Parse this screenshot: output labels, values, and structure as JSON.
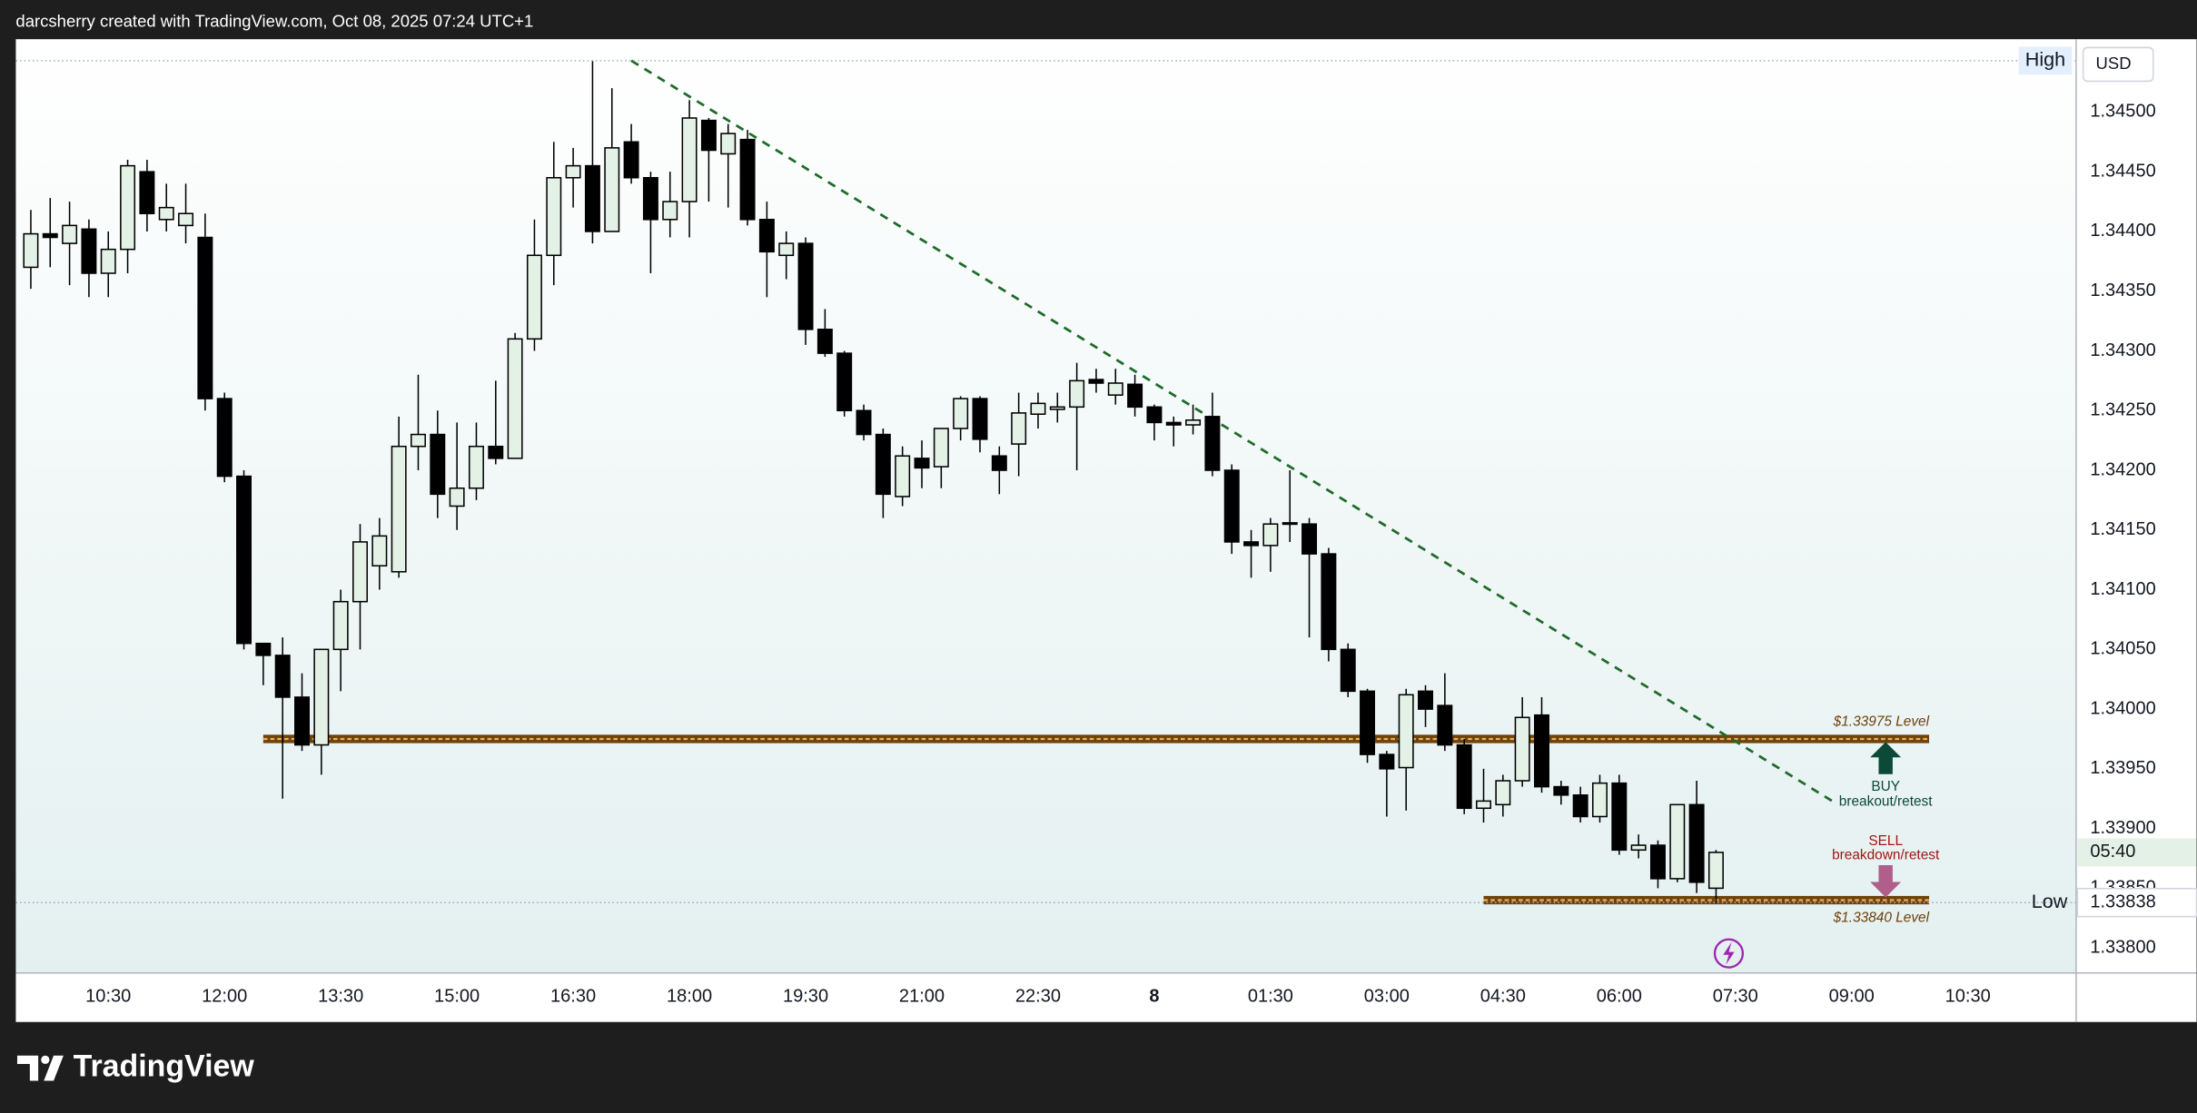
{
  "header": "darcsherry created with TradingView.com, Oct 08, 2025 07:24 UTC+1",
  "footer_brand": "TradingView",
  "chart_data": {
    "type": "candlestick",
    "currency": "USD",
    "x": [
      "09:30",
      "09:45",
      "10:00",
      "10:15",
      "10:30",
      "10:45",
      "11:00",
      "11:15",
      "11:30",
      "11:45",
      "12:00",
      "12:15",
      "12:30",
      "12:45",
      "13:00",
      "13:15",
      "13:30",
      "13:45",
      "14:00",
      "14:15",
      "14:30",
      "14:45",
      "15:00",
      "15:15",
      "15:30",
      "15:45",
      "16:00",
      "16:15",
      "16:30",
      "16:45",
      "17:00",
      "17:15",
      "17:30",
      "17:45",
      "18:00",
      "18:15",
      "18:30",
      "18:45",
      "19:00",
      "19:15",
      "19:30",
      "19:45",
      "20:00",
      "20:15",
      "20:30",
      "20:45",
      "21:00",
      "21:15",
      "21:30",
      "21:45",
      "22:00",
      "22:15",
      "22:30",
      "22:45",
      "23:00",
      "23:15",
      "23:30",
      "23:45",
      "00:00",
      "00:15",
      "00:30",
      "00:45",
      "01:00",
      "01:15",
      "01:30",
      "01:45",
      "02:00",
      "02:15",
      "02:30",
      "02:45",
      "03:00",
      "03:15",
      "03:30",
      "03:45",
      "04:00",
      "04:15",
      "04:30",
      "04:45",
      "05:00",
      "05:15",
      "05:30",
      "05:45",
      "06:00",
      "06:15",
      "06:30",
      "06:45",
      "07:00",
      "07:15"
    ],
    "open": [
      1.3437,
      1.34398,
      1.3439,
      1.34402,
      1.34365,
      1.34385,
      1.3445,
      1.3441,
      1.34405,
      1.34395,
      1.3426,
      1.34195,
      1.34055,
      1.34045,
      1.3401,
      1.3397,
      1.3405,
      1.3409,
      1.3412,
      1.34115,
      1.3422,
      1.3423,
      1.3417,
      1.34185,
      1.3422,
      1.3421,
      1.3431,
      1.3438,
      1.34445,
      1.34455,
      1.344,
      1.34475,
      1.34445,
      1.3441,
      1.34425,
      1.34493,
      1.34465,
      1.34477,
      1.3441,
      1.3438,
      1.3439,
      1.34318,
      1.34298,
      1.3425,
      1.3423,
      1.34178,
      1.3421,
      1.34203,
      1.34235,
      1.3426,
      1.34212,
      1.34222,
      1.34247,
      1.34251,
      1.34253,
      1.34276,
      1.34263,
      1.34272,
      1.34253,
      1.3424,
      1.34238,
      1.34245,
      1.342,
      1.3414,
      1.34137,
      1.34156,
      1.34155,
      1.3413,
      1.3405,
      1.34015,
      1.33962,
      1.33951,
      1.34015,
      1.34003,
      1.3397,
      1.33917,
      1.3392,
      1.3394,
      1.33995,
      1.33935,
      1.33928,
      1.3391,
      1.33938,
      1.33882,
      1.33886,
      1.33858,
      1.3392,
      1.3385
    ],
    "high": [
      1.34418,
      1.34428,
      1.34425,
      1.3441,
      1.344,
      1.3446,
      1.3446,
      1.3444,
      1.3444,
      1.34415,
      1.34265,
      1.342,
      1.34055,
      1.3406,
      1.3403,
      1.3405,
      1.341,
      1.34155,
      1.3416,
      1.34245,
      1.3428,
      1.3425,
      1.3424,
      1.3424,
      1.34275,
      1.34315,
      1.3441,
      1.34475,
      1.3447,
      1.34543,
      1.3452,
      1.3449,
      1.3445,
      1.3445,
      1.3451,
      1.34495,
      1.3449,
      1.34485,
      1.34425,
      1.344,
      1.34395,
      1.34335,
      1.343,
      1.34255,
      1.34235,
      1.3422,
      1.34225,
      1.34235,
      1.34262,
      1.34262,
      1.3422,
      1.34265,
      1.34265,
      1.34265,
      1.3429,
      1.34285,
      1.34285,
      1.3428,
      1.34255,
      1.34245,
      1.34255,
      1.34265,
      1.34205,
      1.3415,
      1.3416,
      1.342,
      1.3416,
      1.34135,
      1.34055,
      1.34017,
      1.33965,
      1.34017,
      1.3402,
      1.3403,
      1.33975,
      1.3395,
      1.33945,
      1.3401,
      1.3401,
      1.3394,
      1.33935,
      1.33945,
      1.33945,
      1.33895,
      1.3389,
      1.3392,
      1.3394,
      1.33882
    ],
    "low": [
      1.34352,
      1.3437,
      1.34355,
      1.34345,
      1.34345,
      1.34365,
      1.344,
      1.344,
      1.3439,
      1.3425,
      1.3419,
      1.3405,
      1.3402,
      1.33925,
      1.33965,
      1.33945,
      1.34015,
      1.3405,
      1.341,
      1.3411,
      1.342,
      1.3416,
      1.3415,
      1.34175,
      1.34205,
      1.3421,
      1.343,
      1.34355,
      1.3442,
      1.3439,
      1.344,
      1.3444,
      1.34365,
      1.34395,
      1.34395,
      1.34425,
      1.3442,
      1.34405,
      1.34345,
      1.3436,
      1.34305,
      1.34295,
      1.34245,
      1.34225,
      1.3416,
      1.3417,
      1.34185,
      1.34185,
      1.34225,
      1.34215,
      1.3418,
      1.34195,
      1.34235,
      1.3424,
      1.342,
      1.34265,
      1.34255,
      1.34245,
      1.34225,
      1.3422,
      1.3423,
      1.34195,
      1.3413,
      1.3411,
      1.34115,
      1.3414,
      1.3406,
      1.3404,
      1.3401,
      1.33955,
      1.3391,
      1.33915,
      1.33985,
      1.33965,
      1.33912,
      1.33905,
      1.3391,
      1.33935,
      1.3393,
      1.3392,
      1.33905,
      1.33905,
      1.33878,
      1.33875,
      1.3385,
      1.33855,
      1.33846,
      1.33838
    ],
    "close": [
      1.34398,
      1.34395,
      1.34405,
      1.34365,
      1.34385,
      1.34455,
      1.34415,
      1.3442,
      1.34415,
      1.3426,
      1.34195,
      1.34055,
      1.34045,
      1.3401,
      1.3397,
      1.3405,
      1.3409,
      1.3414,
      1.34145,
      1.3422,
      1.3423,
      1.3418,
      1.34185,
      1.3422,
      1.3421,
      1.3431,
      1.3438,
      1.34445,
      1.34455,
      1.344,
      1.3447,
      1.34445,
      1.3441,
      1.34425,
      1.34495,
      1.34468,
      1.34482,
      1.3441,
      1.34383,
      1.3439,
      1.34318,
      1.34298,
      1.3425,
      1.3423,
      1.3418,
      1.34212,
      1.34202,
      1.34235,
      1.3426,
      1.34226,
      1.342,
      1.34248,
      1.34256,
      1.34253,
      1.34275,
      1.34273,
      1.34273,
      1.34253,
      1.3424,
      1.34238,
      1.34242,
      1.342,
      1.3414,
      1.34137,
      1.34155,
      1.34155,
      1.3413,
      1.3405,
      1.34015,
      1.33962,
      1.3395,
      1.34012,
      1.34,
      1.3397,
      1.33917,
      1.33923,
      1.3394,
      1.33993,
      1.33935,
      1.33928,
      1.3391,
      1.33938,
      1.33882,
      1.33886,
      1.33858,
      1.3392,
      1.33855,
      1.3388
    ],
    "colors": {
      "up": "#e4f1e6",
      "down": "#000000",
      "border": "#000000"
    },
    "ylim": [
      1.33779,
      1.34561
    ],
    "yticks": [
      {
        "value": 1.338,
        "label": "1.33800"
      },
      {
        "value": 1.3385,
        "label": "1.33850"
      },
      {
        "value": 1.339,
        "label": "1.33900"
      },
      {
        "value": 1.3395,
        "label": "1.33950"
      },
      {
        "value": 1.34,
        "label": "1.34000"
      },
      {
        "value": 1.3405,
        "label": "1.34050"
      },
      {
        "value": 1.341,
        "label": "1.34100"
      },
      {
        "value": 1.3415,
        "label": "1.34150"
      },
      {
        "value": 1.342,
        "label": "1.34200"
      },
      {
        "value": 1.3425,
        "label": "1.34250"
      },
      {
        "value": 1.343,
        "label": "1.34300"
      },
      {
        "value": 1.3435,
        "label": "1.34350"
      },
      {
        "value": 1.344,
        "label": "1.34400"
      },
      {
        "value": 1.3445,
        "label": "1.34450"
      },
      {
        "value": 1.345,
        "label": "1.34500"
      }
    ],
    "xticks": [
      "10:30",
      "12:00",
      "13:30",
      "15:00",
      "16:30",
      "18:00",
      "19:30",
      "21:00",
      "22:30",
      {
        "value": "00:00",
        "label": "8"
      },
      "01:30",
      "03:00",
      "04:30",
      "06:00",
      "07:30",
      "09:00",
      "10:30"
    ],
    "grid": false,
    "high_marker": {
      "label": "High",
      "value": 1.34543
    },
    "low_marker": {
      "label": "Low",
      "value": 1.33838
    },
    "countdown": "05:40",
    "trendline": {
      "x": [
        "17:15",
        "08:45"
      ],
      "y": [
        1.34543,
        1.33923
      ],
      "color": "#1f6b2a"
    },
    "levels": [
      {
        "label": "$1.33975 Level",
        "value": 1.33975,
        "x": [
          "12:30",
          "10:00"
        ]
      },
      {
        "label": "$1.33840 Level",
        "value": 1.3384,
        "x": [
          "04:15",
          "10:00"
        ]
      }
    ],
    "buy_note": {
      "title": "BUY",
      "text": "breakout/retest"
    },
    "sell_note": {
      "title": "SELL",
      "text": "breakdown/retest"
    }
  }
}
